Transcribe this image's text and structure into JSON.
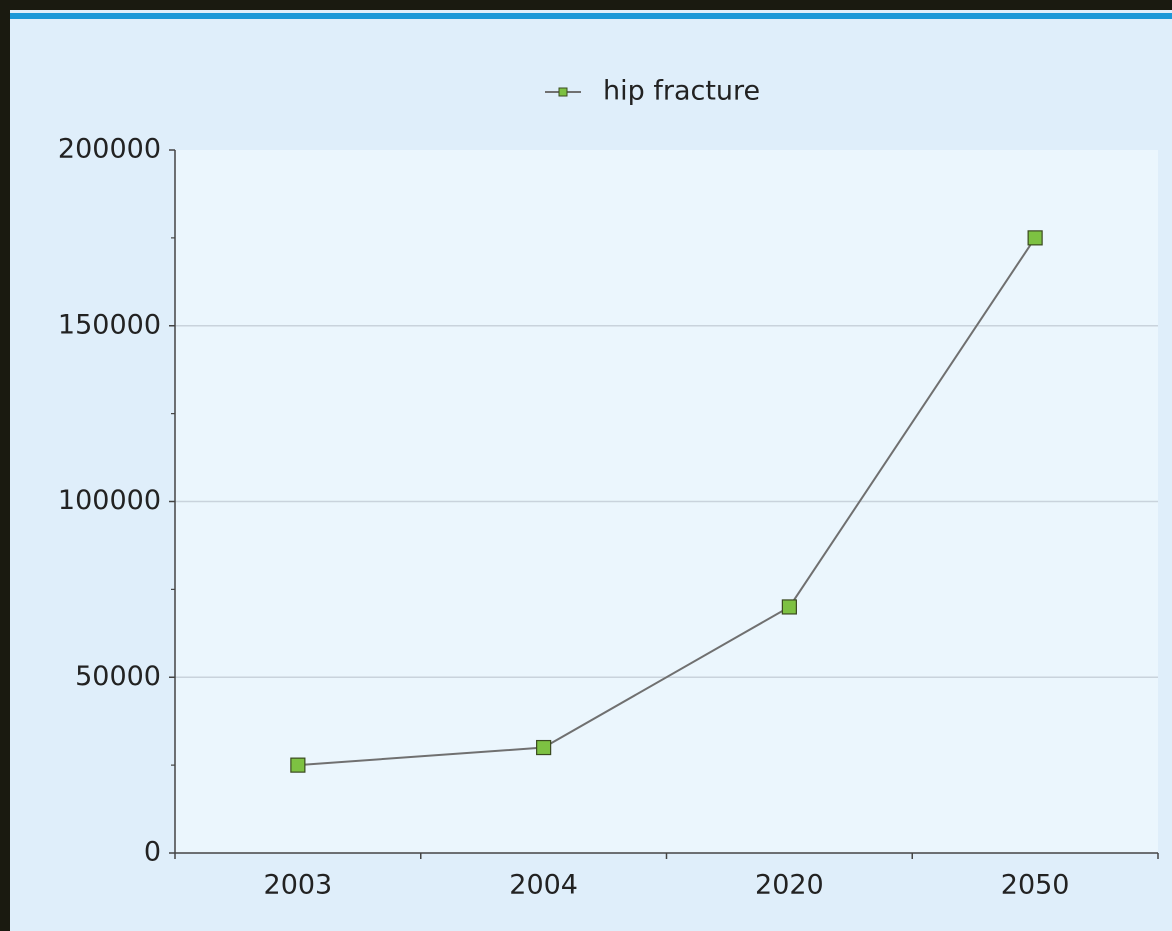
{
  "chart_data": {
    "type": "line",
    "categories": [
      "2003",
      "2004",
      "2020",
      "2050"
    ],
    "series": [
      {
        "name": "hip fracture",
        "color": "#7dc142",
        "line_color": "#707070",
        "values": [
          25000,
          30000,
          70000,
          175000
        ]
      }
    ],
    "ylim": [
      0,
      200000
    ],
    "yticks": [
      0,
      50000,
      100000,
      150000,
      200000
    ],
    "grid": true,
    "legend": "top"
  }
}
